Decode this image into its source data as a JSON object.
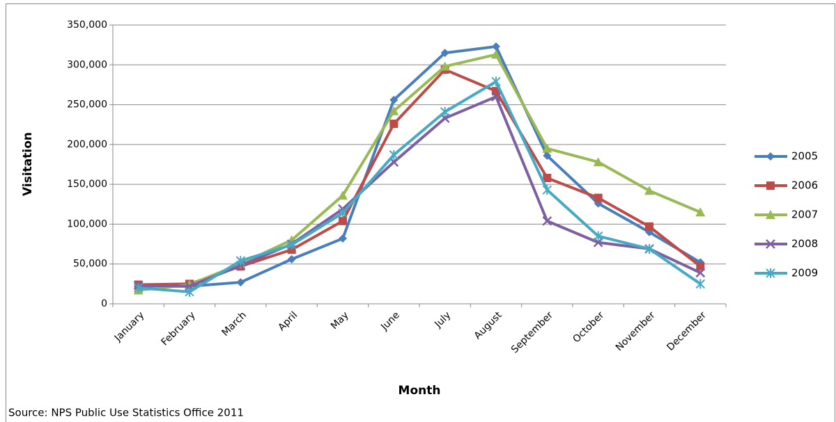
{
  "chart_data": {
    "type": "line",
    "x_label": "Month",
    "y_label": "Visitation",
    "source": "Source: NPS Public Use Statistics Office 2011",
    "categories": [
      "January",
      "February",
      "March",
      "April",
      "May",
      "June",
      "July",
      "August",
      "September",
      "October",
      "November",
      "December"
    ],
    "ylim": [
      0,
      350000
    ],
    "yticks": [
      0,
      {
        "value": 50000,
        "label": "50,000"
      },
      {
        "value": 100000,
        "label": "100,000"
      },
      {
        "value": 150000,
        "label": "150,000"
      },
      {
        "value": 200000,
        "label": "200,000"
      },
      {
        "value": 250000,
        "label": "250,000"
      },
      {
        "value": 300000,
        "label": "300,000"
      },
      {
        "value": 350000,
        "label": "350,000"
      }
    ],
    "grid": true,
    "legend": "right",
    "series": [
      {
        "name": "2005",
        "color": "#4a7ebb",
        "marker": "diamond",
        "values": [
          22000,
          22000,
          27000,
          56000,
          82000,
          256000,
          315000,
          323000,
          186000,
          126000,
          90000,
          52000
        ]
      },
      {
        "name": "2006",
        "color": "#be4b48",
        "marker": "square",
        "values": [
          24000,
          25000,
          47000,
          68000,
          104000,
          226000,
          294000,
          267000,
          158000,
          133000,
          97000,
          47000
        ]
      },
      {
        "name": "2007",
        "color": "#98b954",
        "marker": "triangle",
        "values": [
          17000,
          24000,
          50000,
          80000,
          136000,
          242000,
          298000,
          313000,
          195000,
          178000,
          142000,
          115000
        ]
      },
      {
        "name": "2008",
        "color": "#7d60a0",
        "marker": "x",
        "values": [
          23000,
          22000,
          48000,
          75000,
          119000,
          178000,
          233000,
          260000,
          104000,
          77000,
          69000,
          39000
        ]
      },
      {
        "name": "2009",
        "color": "#46aac5",
        "marker": "star",
        "values": [
          20000,
          15000,
          54000,
          74000,
          114000,
          187000,
          241000,
          279000,
          143000,
          85000,
          69000,
          25000
        ]
      }
    ]
  }
}
